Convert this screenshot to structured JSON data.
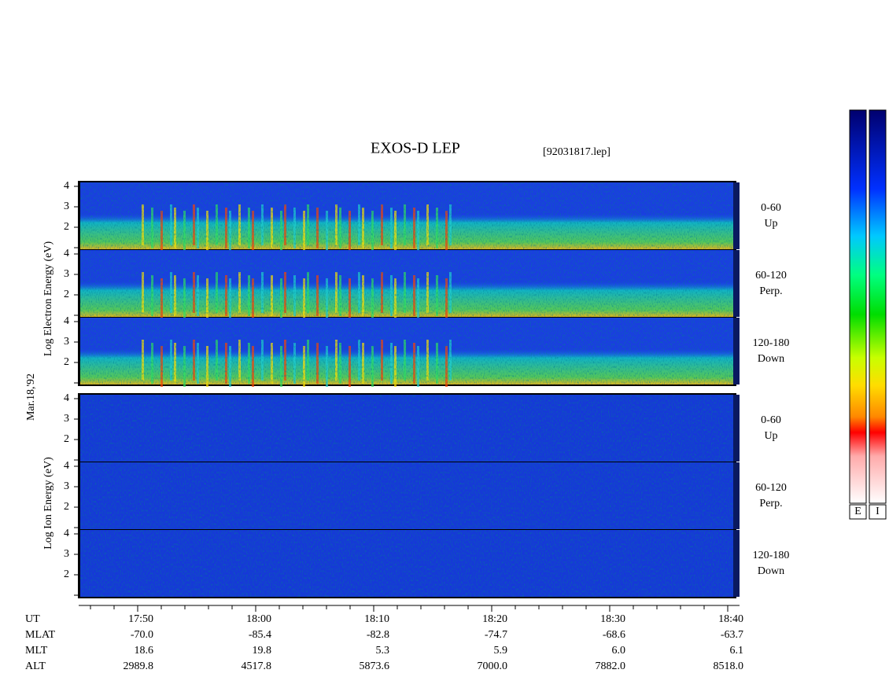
{
  "chart_data": {
    "type": "spectrogram",
    "title": "EXOS-D LEP",
    "subtitle": "[92031817.lep]",
    "date": "Mar.18,'92",
    "ylim": [
      1,
      4
    ],
    "yticks": [
      2,
      3,
      4
    ],
    "blocks": [
      {
        "ylabel": "Log Electron Energy (eV)",
        "channels": [
          {
            "range": "0-60",
            "dir": "Up"
          },
          {
            "range": "60-120",
            "dir": "Perp."
          },
          {
            "range": "120-180",
            "dir": "Down"
          }
        ]
      },
      {
        "ylabel": "Log Ion Energy (eV)",
        "channels": [
          {
            "range": "0-60",
            "dir": "Up"
          },
          {
            "range": "60-120",
            "dir": "Perp."
          },
          {
            "range": "120-180",
            "dir": "Down"
          }
        ]
      }
    ],
    "rows": [
      {
        "name": "UT",
        "values": [
          "17:50",
          "18:00",
          "18:10",
          "18:20",
          "18:30",
          "18:40"
        ]
      },
      {
        "name": "MLAT",
        "values": [
          "-70.0",
          "-85.4",
          "-82.8",
          "-74.7",
          "-68.6",
          "-63.7"
        ]
      },
      {
        "name": "MLT",
        "values": [
          "18.6",
          "19.8",
          "5.3",
          "5.9",
          "6.0",
          "6.1"
        ]
      },
      {
        "name": "ALT",
        "values": [
          "2989.8",
          "4517.8",
          "5873.6",
          "7000.0",
          "7882.0",
          "8518.0"
        ]
      }
    ],
    "colorbars": [
      "E",
      "I"
    ]
  }
}
